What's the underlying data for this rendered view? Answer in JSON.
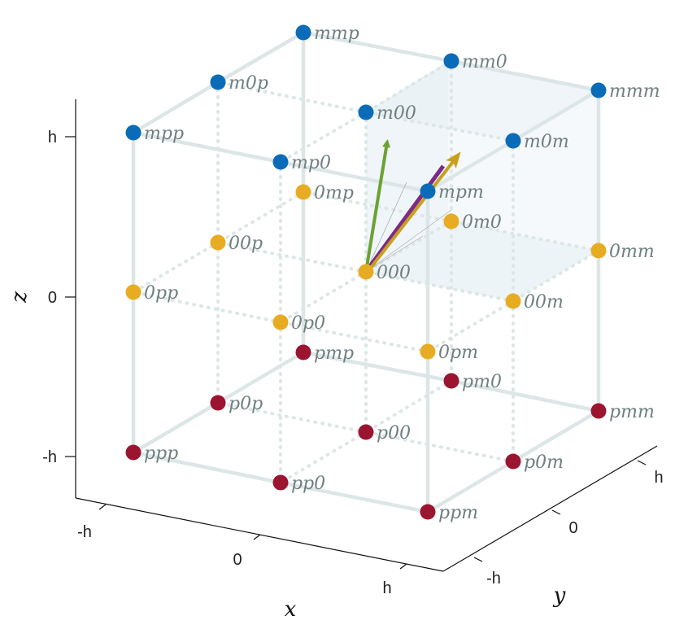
{
  "axes": {
    "x": {
      "title": "x",
      "ticks": [
        "-h",
        "0",
        "h"
      ]
    },
    "y": {
      "title": "y",
      "ticks": [
        "-h",
        "0",
        "h"
      ]
    },
    "z": {
      "title": "z",
      "ticks": [
        "h",
        "0",
        "-h"
      ]
    }
  },
  "colors": {
    "top_layer": "#0a6cb8",
    "middle_layer": "#e8ac22",
    "bottom_layer": "#9c1530",
    "edge": "#dde6e6",
    "arrow_green": "#6aa232",
    "arrow_purple": "#7b2a86",
    "arrow_gold": "#c8a01e"
  },
  "points": [
    {
      "label": "mmp",
      "layer": "top"
    },
    {
      "label": "mm0",
      "layer": "top"
    },
    {
      "label": "mmm",
      "layer": "top"
    },
    {
      "label": "m0p",
      "layer": "top"
    },
    {
      "label": "m00",
      "layer": "top"
    },
    {
      "label": "m0m",
      "layer": "top"
    },
    {
      "label": "mpp",
      "layer": "top"
    },
    {
      "label": "mp0",
      "layer": "top"
    },
    {
      "label": "mpm",
      "layer": "top"
    },
    {
      "label": "0mp",
      "layer": "middle"
    },
    {
      "label": "0m0",
      "layer": "middle"
    },
    {
      "label": "0mm",
      "layer": "middle"
    },
    {
      "label": "00p",
      "layer": "middle"
    },
    {
      "label": "000",
      "layer": "middle"
    },
    {
      "label": "00m",
      "layer": "middle"
    },
    {
      "label": "0pp",
      "layer": "middle"
    },
    {
      "label": "0p0",
      "layer": "middle"
    },
    {
      "label": "0pm",
      "layer": "middle"
    },
    {
      "label": "pmp",
      "layer": "bottom"
    },
    {
      "label": "pm0",
      "layer": "bottom"
    },
    {
      "label": "pmm",
      "layer": "bottom"
    },
    {
      "label": "p0p",
      "layer": "bottom"
    },
    {
      "label": "p00",
      "layer": "bottom"
    },
    {
      "label": "p0m",
      "layer": "bottom"
    },
    {
      "label": "ppp",
      "layer": "bottom"
    },
    {
      "label": "pp0",
      "layer": "bottom"
    },
    {
      "label": "ppm",
      "layer": "bottom"
    }
  ]
}
